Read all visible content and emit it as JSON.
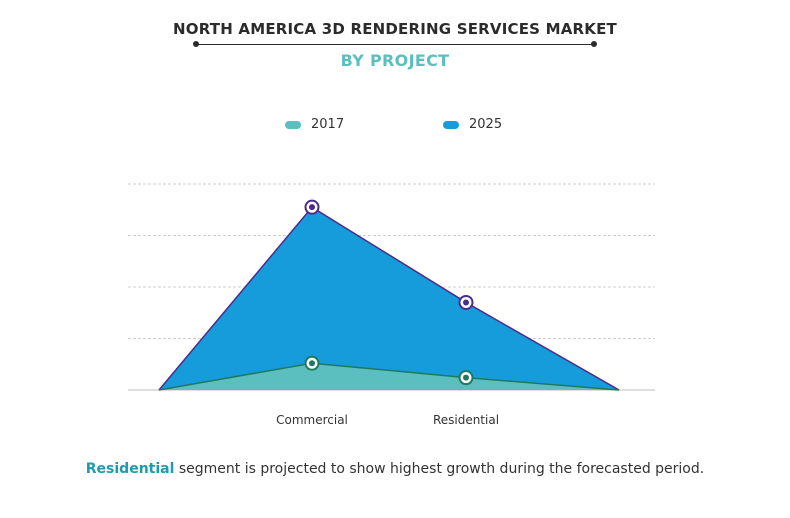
{
  "header": {
    "title": "NORTH AMERICA 3D RENDERING SERVICES MARKET",
    "subtitle": "BY PROJECT"
  },
  "colors": {
    "title": "#2b2b2b",
    "subtitle": "#5bbfc0",
    "series_2017_fill": "#5bbfc0",
    "series_2017_stroke": "#1e7a5e",
    "series_2025_fill": "#169bdb",
    "series_2025_stroke": "#4a2c8c",
    "gridline": "#cfcfcf",
    "highlight": "#1e9bb0"
  },
  "legend": {
    "items": [
      {
        "label": "2017",
        "color": "#5bbfc0"
      },
      {
        "label": "2025",
        "color": "#169bdb"
      }
    ]
  },
  "chart_data": {
    "type": "area",
    "categories": [
      "",
      "Commercial",
      "Residential",
      ""
    ],
    "series": [
      {
        "name": "2017",
        "values": [
          0,
          0.52,
          0.24,
          0
        ]
      },
      {
        "name": "2025",
        "values": [
          0,
          3.55,
          1.7,
          0
        ]
      }
    ],
    "ylim": [
      0,
      4
    ],
    "grid": true,
    "legend_position": "top-center",
    "xlabel": "",
    "ylabel": ""
  },
  "footnote": {
    "highlight": "Residential",
    "text": " segment is projected to show highest growth during the forecasted period."
  }
}
